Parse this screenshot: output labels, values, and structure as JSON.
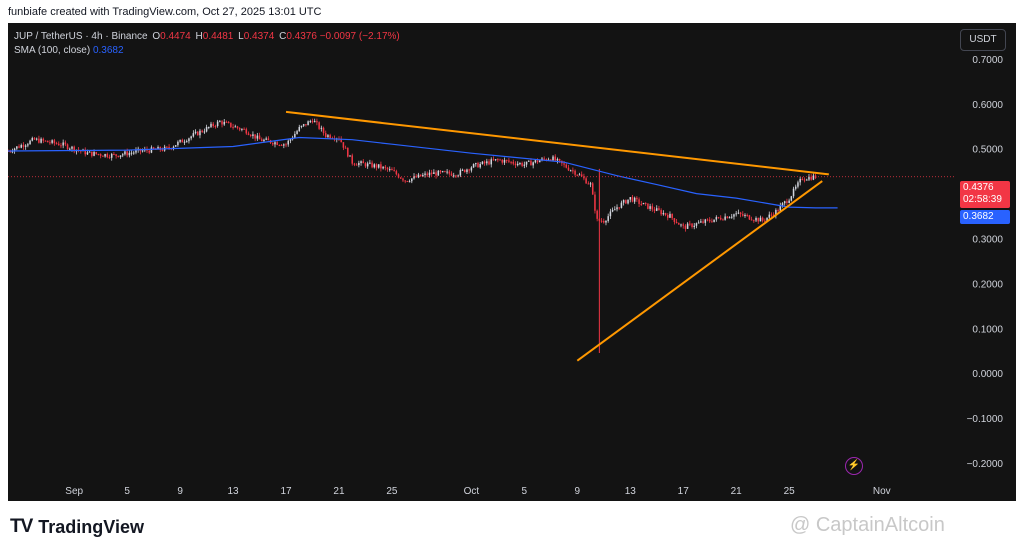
{
  "header": {
    "credit": "funbiafe created with TradingView.com, Oct 27, 2025 13:01 UTC"
  },
  "legend": {
    "symbol": "JUP / TetherUS · 4h · Binance",
    "o_label": "O",
    "o": "0.4474",
    "h_label": "H",
    "h": "0.4481",
    "l_label": "L",
    "l": "0.4374",
    "c_label": "C",
    "c": "0.4376",
    "change": "−0.0097 (−2.17%)",
    "sma_label": "SMA (100, close)",
    "sma_value": "0.3682"
  },
  "currency_button": "USDT",
  "price_tags": {
    "last_price": "0.4376",
    "countdown": "02:58:39",
    "sma": "0.3682"
  },
  "brand": {
    "logo": "TV",
    "name": "TradingView"
  },
  "watermark": "@ CaptainAltcoin",
  "colors": {
    "up": "#d1d4dc",
    "down": "#f23645",
    "sma": "#2962ff",
    "trendline": "#ff9800",
    "background": "#131313"
  },
  "chart_data": {
    "type": "candlestick",
    "title": "JUP / TetherUS · 4h · Binance",
    "y_ticks": [
      "0.7000",
      "0.6000",
      "0.5000",
      "0.4000",
      "0.3000",
      "0.2000",
      "0.1000",
      "0.0000",
      "−0.1000",
      "−0.2000"
    ],
    "ylim": [
      -0.24,
      0.78
    ],
    "x_ticks": [
      "Sep",
      "5",
      "9",
      "13",
      "17",
      "21",
      "25",
      "Oct",
      "5",
      "9",
      "13",
      "17",
      "21",
      "25",
      "Nov"
    ],
    "x_dates": [
      "2025-09-01",
      "2025-09-05",
      "2025-09-09",
      "2025-09-13",
      "2025-09-17",
      "2025-09-21",
      "2025-09-25",
      "2025-10-01",
      "2025-10-05",
      "2025-10-09",
      "2025-10-13",
      "2025-10-17",
      "2025-10-21",
      "2025-10-25",
      "2025-11-01"
    ],
    "xlim": [
      "2025-08-27",
      "2025-11-06"
    ],
    "price_anchors": [
      [
        "2025-08-27",
        0.495
      ],
      [
        "2025-08-29",
        0.52
      ],
      [
        "2025-08-31",
        0.51
      ],
      [
        "2025-09-02",
        0.49
      ],
      [
        "2025-09-04",
        0.485
      ],
      [
        "2025-09-06",
        0.495
      ],
      [
        "2025-09-08",
        0.5
      ],
      [
        "2025-09-10",
        0.53
      ],
      [
        "2025-09-12",
        0.56
      ],
      [
        "2025-09-14",
        0.54
      ],
      [
        "2025-09-15",
        0.52
      ],
      [
        "2025-09-17",
        0.51
      ],
      [
        "2025-09-18",
        0.545
      ],
      [
        "2025-09-19",
        0.565
      ],
      [
        "2025-09-20",
        0.53
      ],
      [
        "2025-09-21",
        0.525
      ],
      [
        "2025-09-22",
        0.47
      ],
      [
        "2025-09-24",
        0.46
      ],
      [
        "2025-09-25",
        0.45
      ],
      [
        "2025-09-26",
        0.43
      ],
      [
        "2025-09-28",
        0.445
      ],
      [
        "2025-09-30",
        0.445
      ],
      [
        "2025-10-01",
        0.46
      ],
      [
        "2025-10-03",
        0.475
      ],
      [
        "2025-10-05",
        0.465
      ],
      [
        "2025-10-07",
        0.48
      ],
      [
        "2025-10-09",
        0.445
      ],
      [
        "2025-10-10",
        0.42
      ],
      [
        "2025-10-10T12:00",
        0.34
      ],
      [
        "2025-10-11",
        0.34
      ],
      [
        "2025-10-12",
        0.37
      ],
      [
        "2025-10-13",
        0.39
      ],
      [
        "2025-10-14",
        0.375
      ],
      [
        "2025-10-16",
        0.35
      ],
      [
        "2025-10-17",
        0.325
      ],
      [
        "2025-10-19",
        0.34
      ],
      [
        "2025-10-21",
        0.355
      ],
      [
        "2025-10-23",
        0.34
      ],
      [
        "2025-10-24",
        0.36
      ],
      [
        "2025-10-25",
        0.39
      ],
      [
        "2025-10-26",
        0.435
      ],
      [
        "2025-10-27",
        0.4376
      ]
    ],
    "sma_100": [
      [
        "2025-08-27",
        0.495
      ],
      [
        "2025-09-05",
        0.497
      ],
      [
        "2025-09-13",
        0.505
      ],
      [
        "2025-09-18",
        0.525
      ],
      [
        "2025-09-22",
        0.52
      ],
      [
        "2025-09-25",
        0.51
      ],
      [
        "2025-10-01",
        0.49
      ],
      [
        "2025-10-08",
        0.47
      ],
      [
        "2025-10-12",
        0.44
      ],
      [
        "2025-10-15",
        0.42
      ],
      [
        "2025-10-18",
        0.4
      ],
      [
        "2025-10-21",
        0.39
      ],
      [
        "2025-10-24",
        0.375
      ],
      [
        "2025-10-25",
        0.37
      ],
      [
        "2025-10-27",
        0.3682
      ]
    ],
    "trendlines": [
      {
        "from": [
          "2025-09-17",
          0.582
        ],
        "to": [
          "2025-10-28",
          0.443
        ]
      },
      {
        "from": [
          "2025-10-09",
          0.028
        ],
        "to": [
          "2025-10-27T12:00",
          0.428
        ]
      }
    ],
    "wick_low": {
      "date": "2025-10-10T16:00",
      "high": 0.455,
      "low": 0.045
    },
    "last_price": 0.4376,
    "sma_value": 0.3682
  }
}
